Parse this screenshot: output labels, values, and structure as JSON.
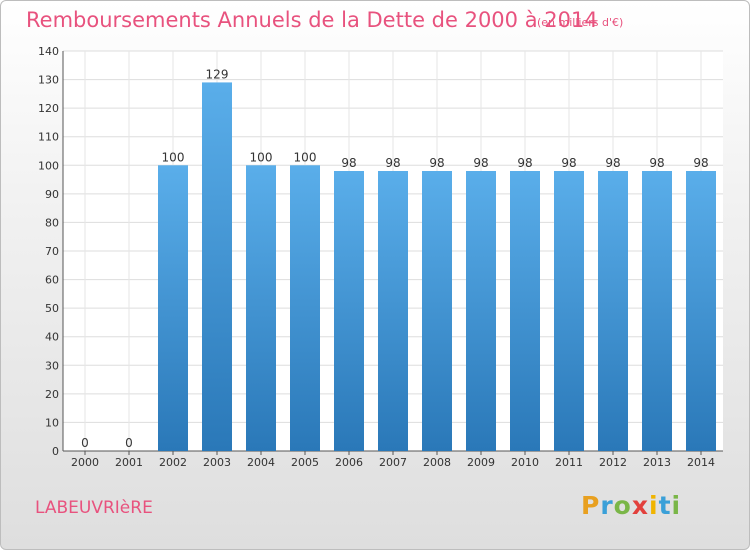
{
  "title": "Remboursements Annuels de la Dette de 2000 à 2014",
  "subtitle": "(en milliers d'€)",
  "commune": "LABEUVRIèRE",
  "logo": {
    "letters": [
      "P",
      "r",
      "o",
      "x",
      "i",
      "t",
      "i"
    ],
    "colors": [
      "#e8a020",
      "#3aa0d8",
      "#7ab648",
      "#e2403c",
      "#f0b400",
      "#3aa0d8",
      "#7ab648"
    ]
  },
  "chart_data": {
    "type": "bar",
    "title": "Remboursements Annuels de la Dette de 2000 à 2014",
    "categories": [
      "2000",
      "2001",
      "2002",
      "2003",
      "2004",
      "2005",
      "2006",
      "2007",
      "2008",
      "2009",
      "2010",
      "2011",
      "2012",
      "2013",
      "2014"
    ],
    "values": [
      0,
      0,
      100,
      129,
      100,
      100,
      98,
      98,
      98,
      98,
      98,
      98,
      98,
      98,
      98
    ],
    "ylim": [
      0,
      140
    ],
    "yticks": [
      0,
      10,
      20,
      30,
      40,
      50,
      60,
      70,
      80,
      90,
      100,
      110,
      120,
      130,
      140
    ],
    "grid": true,
    "bar_color": "#3d95d8",
    "xlabel": "",
    "ylabel": ""
  }
}
